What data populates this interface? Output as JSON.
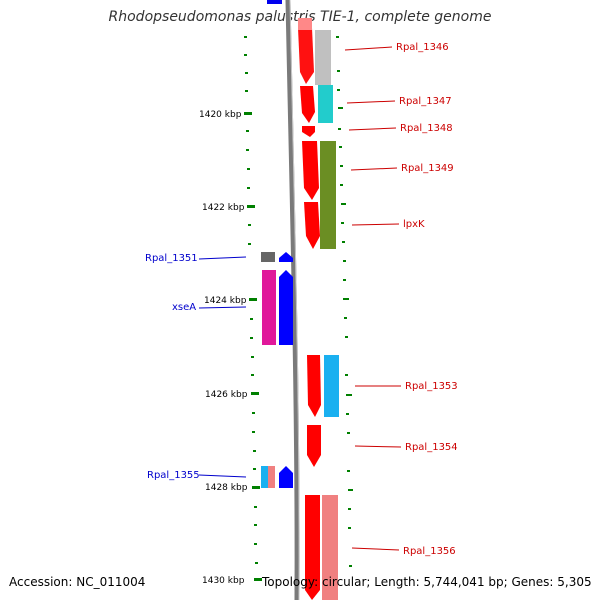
{
  "title": "Rhodopseudomonas palustris TIE-1, complete genome",
  "footer": {
    "accession": "Accession: NC_011004",
    "stats": "Topology: circular; Length: 5,744,041 bp; Genes: 5,305"
  },
  "colors": {
    "backbone": "#7a7a7a",
    "tick": "#008000",
    "forward_strand": "#ff0000",
    "reverse_strand": "#0000ff",
    "right_label": "#cc0000",
    "left_label": "#0000cc"
  },
  "ticks": [
    "1420 kbp",
    "1422 kbp",
    "1424 kbp",
    "1426 kbp",
    "1428 kbp",
    "1430 kbp"
  ],
  "right_labels": [
    "Rpal_1346",
    "Rpal_1347",
    "Rpal_1348",
    "Rpal_1349",
    "lpxK",
    "Rpal_1353",
    "Rpal_1354",
    "Rpal_1356"
  ],
  "left_labels": [
    "Rpal_1351",
    "xseA",
    "Rpal_1355"
  ]
}
